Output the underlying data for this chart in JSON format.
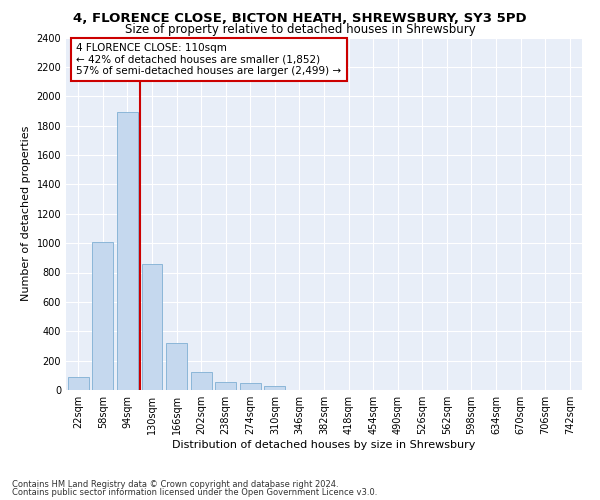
{
  "title": "4, FLORENCE CLOSE, BICTON HEATH, SHREWSBURY, SY3 5PD",
  "subtitle": "Size of property relative to detached houses in Shrewsbury",
  "xlabel": "Distribution of detached houses by size in Shrewsbury",
  "ylabel": "Number of detached properties",
  "bar_color": "#c5d8ee",
  "bar_edge_color": "#7fafd4",
  "categories": [
    "22sqm",
    "58sqm",
    "94sqm",
    "130sqm",
    "166sqm",
    "202sqm",
    "238sqm",
    "274sqm",
    "310sqm",
    "346sqm",
    "382sqm",
    "418sqm",
    "454sqm",
    "490sqm",
    "526sqm",
    "562sqm",
    "598sqm",
    "634sqm",
    "670sqm",
    "706sqm",
    "742sqm"
  ],
  "values": [
    90,
    1010,
    1890,
    860,
    320,
    120,
    57,
    50,
    30,
    0,
    0,
    0,
    0,
    0,
    0,
    0,
    0,
    0,
    0,
    0,
    0
  ],
  "ylim": [
    0,
    2400
  ],
  "yticks": [
    0,
    200,
    400,
    600,
    800,
    1000,
    1200,
    1400,
    1600,
    1800,
    2000,
    2200,
    2400
  ],
  "vline_index": 2.5,
  "annotation_text": "4 FLORENCE CLOSE: 110sqm\n← 42% of detached houses are smaller (1,852)\n57% of semi-detached houses are larger (2,499) →",
  "annotation_box_color": "#ffffff",
  "annotation_box_edgecolor": "#cc0000",
  "vline_color": "#cc0000",
  "footer_line1": "Contains HM Land Registry data © Crown copyright and database right 2024.",
  "footer_line2": "Contains public sector information licensed under the Open Government Licence v3.0.",
  "bg_color": "#e8eef8",
  "grid_color": "#ffffff",
  "title_fontsize": 9.5,
  "subtitle_fontsize": 8.5,
  "tick_fontsize": 7,
  "ylabel_fontsize": 8,
  "xlabel_fontsize": 8,
  "annotation_fontsize": 7.5,
  "footer_fontsize": 6
}
